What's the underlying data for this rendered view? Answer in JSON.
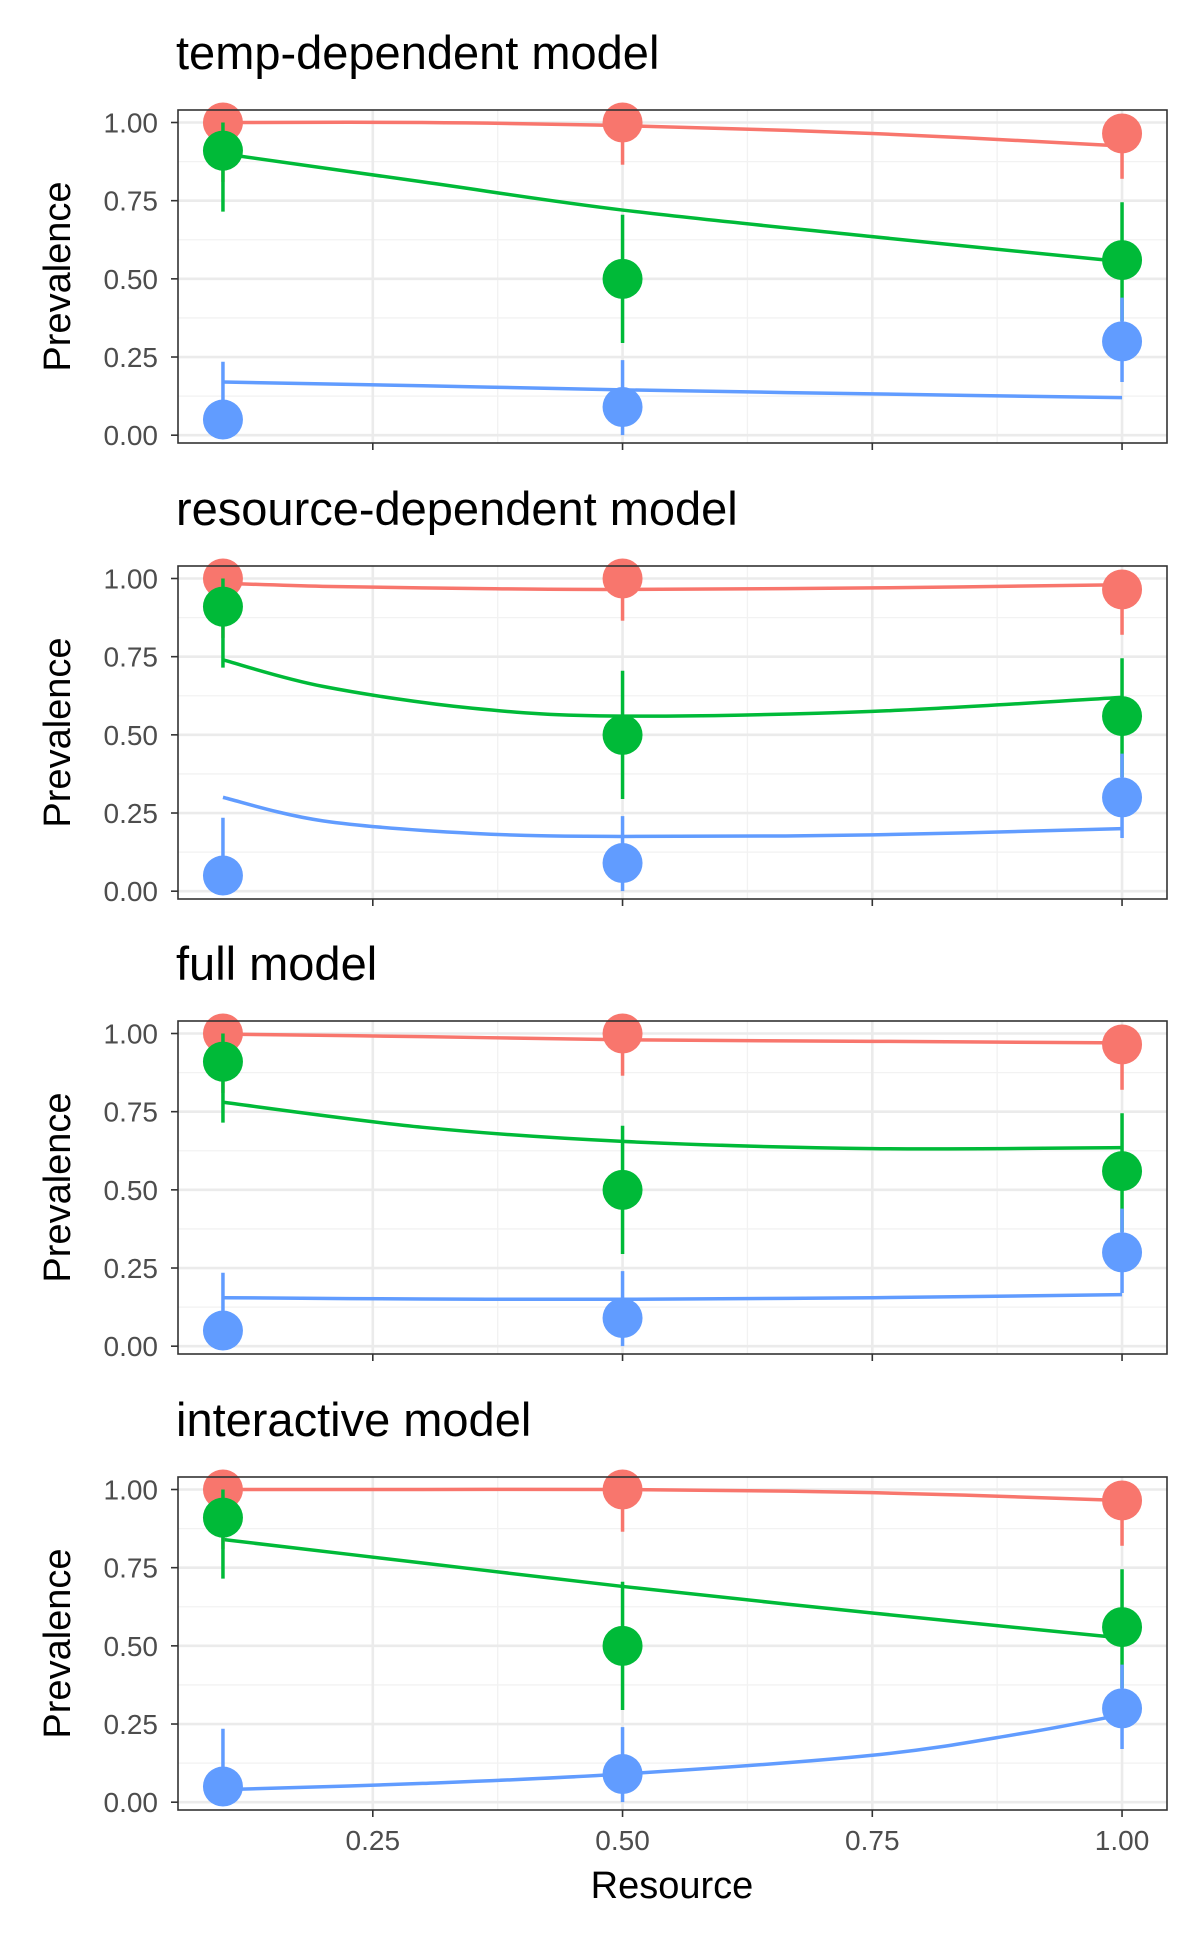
{
  "chart_data": [
    {
      "type": "line",
      "title": "temp-dependent model",
      "ylabel": "Prevalence",
      "xlabel": "",
      "xlim": [
        0.055,
        1.045
      ],
      "ylim": [
        -0.025,
        1.04
      ],
      "x_ticks": [
        "0.25",
        "0.50",
        "0.75",
        "1.00"
      ],
      "y_ticks": [
        "0.00",
        "0.25",
        "0.50",
        "0.75",
        "1.00"
      ],
      "grid": true,
      "points": [
        {
          "color": "#F8766D",
          "x": [
            0.1,
            0.5,
            1.0
          ],
          "y": [
            1.0,
            1.0,
            0.965
          ],
          "err_lo": [
            0.81,
            0.865,
            0.82
          ],
          "err_hi": [
            1.0,
            1.0,
            1.0
          ]
        },
        {
          "color": "#00BA38",
          "x": [
            0.1,
            0.5,
            1.0
          ],
          "y": [
            0.91,
            0.5,
            0.56
          ],
          "err_lo": [
            0.715,
            0.295,
            0.365
          ],
          "err_hi": [
            1.0,
            0.705,
            0.745
          ]
        },
        {
          "color": "#619CFF",
          "x": [
            0.1,
            0.5,
            1.0
          ],
          "y": [
            0.05,
            0.09,
            0.3
          ],
          "err_lo": [
            0.0,
            0.0,
            0.17
          ],
          "err_hi": [
            0.235,
            0.24,
            0.44
          ]
        }
      ],
      "fit_lines": [
        {
          "color": "#F8766D",
          "x": [
            0.1,
            0.3,
            0.5,
            0.75,
            1.0
          ],
          "y": [
            1.0,
            1.0,
            0.99,
            0.965,
            0.925
          ]
        },
        {
          "color": "#00BA38",
          "x": [
            0.1,
            0.3,
            0.5,
            0.75,
            1.0
          ],
          "y": [
            0.9,
            0.81,
            0.72,
            0.635,
            0.555
          ]
        },
        {
          "color": "#619CFF",
          "x": [
            0.1,
            0.3,
            0.5,
            0.75,
            1.0
          ],
          "y": [
            0.17,
            0.158,
            0.145,
            0.132,
            0.12
          ]
        }
      ]
    },
    {
      "type": "line",
      "title": "resource-dependent model",
      "ylabel": "Prevalence",
      "xlabel": "",
      "xlim": [
        0.055,
        1.045
      ],
      "ylim": [
        -0.025,
        1.04
      ],
      "x_ticks": [
        "0.25",
        "0.50",
        "0.75",
        "1.00"
      ],
      "y_ticks": [
        "0.00",
        "0.25",
        "0.50",
        "0.75",
        "1.00"
      ],
      "grid": true,
      "points": [
        {
          "color": "#F8766D",
          "x": [
            0.1,
            0.5,
            1.0
          ],
          "y": [
            1.0,
            1.0,
            0.965
          ],
          "err_lo": [
            0.81,
            0.865,
            0.82
          ],
          "err_hi": [
            1.0,
            1.0,
            1.0
          ]
        },
        {
          "color": "#00BA38",
          "x": [
            0.1,
            0.5,
            1.0
          ],
          "y": [
            0.91,
            0.5,
            0.56
          ],
          "err_lo": [
            0.715,
            0.295,
            0.365
          ],
          "err_hi": [
            1.0,
            0.705,
            0.745
          ]
        },
        {
          "color": "#619CFF",
          "x": [
            0.1,
            0.5,
            1.0
          ],
          "y": [
            0.05,
            0.09,
            0.3
          ],
          "err_lo": [
            0.0,
            0.0,
            0.17
          ],
          "err_hi": [
            0.235,
            0.24,
            0.44
          ]
        }
      ],
      "fit_lines": [
        {
          "color": "#F8766D",
          "x": [
            0.1,
            0.2,
            0.35,
            0.5,
            0.75,
            1.0
          ],
          "y": [
            0.985,
            0.975,
            0.968,
            0.965,
            0.97,
            0.98
          ]
        },
        {
          "color": "#00BA38",
          "x": [
            0.1,
            0.2,
            0.35,
            0.5,
            0.75,
            1.0
          ],
          "y": [
            0.74,
            0.655,
            0.585,
            0.56,
            0.575,
            0.62
          ]
        },
        {
          "color": "#619CFF",
          "x": [
            0.1,
            0.2,
            0.35,
            0.5,
            0.75,
            1.0
          ],
          "y": [
            0.3,
            0.225,
            0.185,
            0.175,
            0.18,
            0.2
          ]
        }
      ]
    },
    {
      "type": "line",
      "title": "full model",
      "ylabel": "Prevalence",
      "xlabel": "",
      "xlim": [
        0.055,
        1.045
      ],
      "ylim": [
        -0.025,
        1.04
      ],
      "x_ticks": [
        "0.25",
        "0.50",
        "0.75",
        "1.00"
      ],
      "y_ticks": [
        "0.00",
        "0.25",
        "0.50",
        "0.75",
        "1.00"
      ],
      "grid": true,
      "points": [
        {
          "color": "#F8766D",
          "x": [
            0.1,
            0.5,
            1.0
          ],
          "y": [
            1.0,
            1.0,
            0.965
          ],
          "err_lo": [
            0.81,
            0.865,
            0.82
          ],
          "err_hi": [
            1.0,
            1.0,
            1.0
          ]
        },
        {
          "color": "#00BA38",
          "x": [
            0.1,
            0.5,
            1.0
          ],
          "y": [
            0.91,
            0.5,
            0.56
          ],
          "err_lo": [
            0.715,
            0.295,
            0.365
          ],
          "err_hi": [
            1.0,
            0.705,
            0.745
          ]
        },
        {
          "color": "#619CFF",
          "x": [
            0.1,
            0.5,
            1.0
          ],
          "y": [
            0.05,
            0.09,
            0.3
          ],
          "err_lo": [
            0.0,
            0.0,
            0.17
          ],
          "err_hi": [
            0.235,
            0.24,
            0.44
          ]
        }
      ],
      "fit_lines": [
        {
          "color": "#F8766D",
          "x": [
            0.1,
            0.3,
            0.5,
            0.75,
            1.0
          ],
          "y": [
            0.998,
            0.99,
            0.98,
            0.975,
            0.97
          ]
        },
        {
          "color": "#00BA38",
          "x": [
            0.1,
            0.3,
            0.5,
            0.75,
            1.0
          ],
          "y": [
            0.78,
            0.7,
            0.655,
            0.632,
            0.635
          ]
        },
        {
          "color": "#619CFF",
          "x": [
            0.1,
            0.3,
            0.5,
            0.75,
            1.0
          ],
          "y": [
            0.155,
            0.151,
            0.15,
            0.155,
            0.165
          ]
        }
      ]
    },
    {
      "type": "line",
      "title": "interactive model",
      "ylabel": "Prevalence",
      "xlabel": "Resource",
      "xlim": [
        0.055,
        1.045
      ],
      "ylim": [
        -0.025,
        1.04
      ],
      "x_ticks": [
        "0.25",
        "0.50",
        "0.75",
        "1.00"
      ],
      "y_ticks": [
        "0.00",
        "0.25",
        "0.50",
        "0.75",
        "1.00"
      ],
      "grid": true,
      "points": [
        {
          "color": "#F8766D",
          "x": [
            0.1,
            0.5,
            1.0
          ],
          "y": [
            1.0,
            1.0,
            0.965
          ],
          "err_lo": [
            0.81,
            0.865,
            0.82
          ],
          "err_hi": [
            1.0,
            1.0,
            1.0
          ]
        },
        {
          "color": "#00BA38",
          "x": [
            0.1,
            0.5,
            1.0
          ],
          "y": [
            0.91,
            0.5,
            0.56
          ],
          "err_lo": [
            0.715,
            0.295,
            0.365
          ],
          "err_hi": [
            1.0,
            0.705,
            0.745
          ]
        },
        {
          "color": "#619CFF",
          "x": [
            0.1,
            0.5,
            1.0
          ],
          "y": [
            0.05,
            0.09,
            0.3
          ],
          "err_lo": [
            0.0,
            0.0,
            0.17
          ],
          "err_hi": [
            0.235,
            0.24,
            0.44
          ]
        }
      ],
      "fit_lines": [
        {
          "color": "#F8766D",
          "x": [
            0.1,
            0.3,
            0.5,
            0.75,
            1.0
          ],
          "y": [
            1.0,
            1.0,
            1.0,
            0.99,
            0.965
          ]
        },
        {
          "color": "#00BA38",
          "x": [
            0.1,
            0.3,
            0.5,
            0.75,
            1.0
          ],
          "y": [
            0.84,
            0.765,
            0.69,
            0.605,
            0.525
          ]
        },
        {
          "color": "#619CFF",
          "x": [
            0.1,
            0.3,
            0.5,
            0.75,
            0.9,
            1.0
          ],
          "y": [
            0.04,
            0.06,
            0.09,
            0.15,
            0.22,
            0.28
          ]
        }
      ]
    }
  ]
}
